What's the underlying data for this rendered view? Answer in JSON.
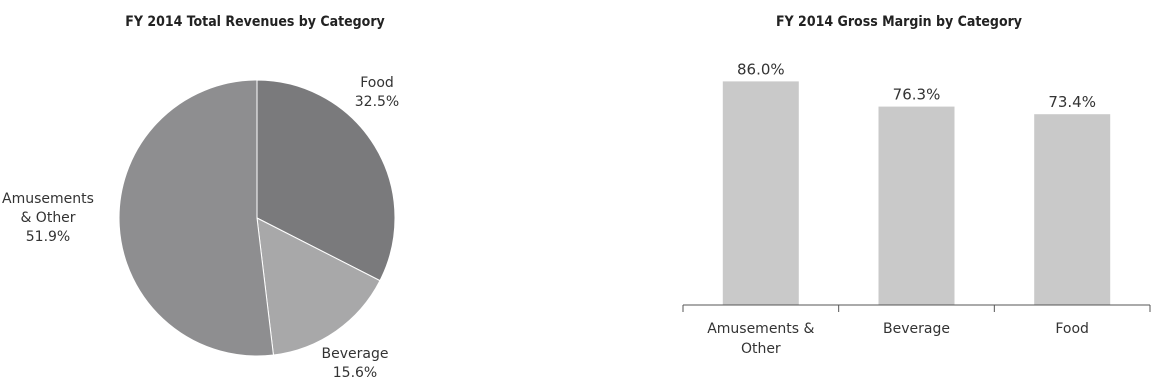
{
  "chart_data": [
    {
      "type": "pie",
      "title": "FY 2014 Total Revenues by Category",
      "slices": [
        {
          "label_lines": [
            "Food"
          ],
          "value": 32.5,
          "value_label": "32.5%",
          "color": "#7a7a7c"
        },
        {
          "label_lines": [
            "Beverage"
          ],
          "value": 15.6,
          "value_label": "15.6%",
          "color": "#a8a8a9"
        },
        {
          "label_lines": [
            "Amusements",
            "& Other"
          ],
          "value": 51.9,
          "value_label": "51.9%",
          "color": "#8e8e90"
        }
      ]
    },
    {
      "type": "bar",
      "title": "FY 2014 Gross Margin by Category",
      "categories": [
        {
          "lines": [
            "Amusements &",
            "Other"
          ]
        },
        {
          "lines": [
            "Beverage"
          ]
        },
        {
          "lines": [
            "Food"
          ]
        }
      ],
      "values": [
        86.0,
        76.3,
        73.4
      ],
      "value_labels": [
        "86.0%",
        "76.3%",
        "73.4%"
      ],
      "ylim": [
        0,
        100
      ],
      "bar_color": "#c9c9c9"
    }
  ]
}
